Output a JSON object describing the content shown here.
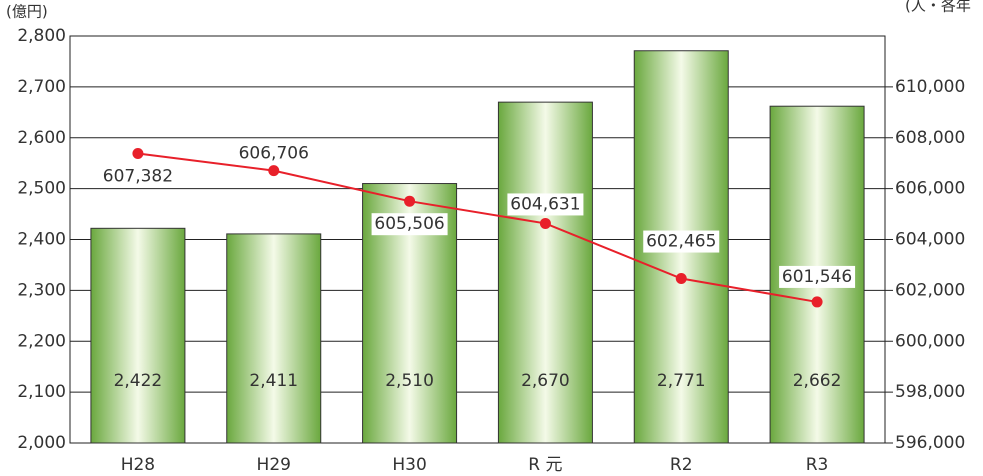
{
  "chart_data": {
    "type": "bar",
    "y_label": "(億円)",
    "y2_label": "(人・各年",
    "categories": [
      "H28",
      "H29",
      "H30",
      "R 元",
      "R2",
      "R3"
    ],
    "series": [
      {
        "name": "bar",
        "type": "bar",
        "color": "#5fa83a",
        "values": [
          2422,
          2411,
          2510,
          2670,
          2771,
          2662
        ],
        "value_labels": [
          "2,422",
          "2,411",
          "2,510",
          "2,670",
          "2,771",
          "2,662"
        ]
      },
      {
        "name": "line",
        "type": "line",
        "axis": "y2",
        "color": "#e8202a",
        "values": [
          607382,
          606706,
          605506,
          604631,
          602465,
          601546
        ],
        "value_labels": [
          "607,382",
          "606,706",
          "605,506",
          "604,631",
          "602,465",
          "601,546"
        ]
      }
    ],
    "ylim": [
      2000,
      2800
    ],
    "yticks": [
      {
        "value": 2000,
        "label": "2,000"
      },
      {
        "value": 2100,
        "label": "2,100"
      },
      {
        "value": 2200,
        "label": "2,200"
      },
      {
        "value": 2300,
        "label": "2,300"
      },
      {
        "value": 2400,
        "label": "2,400"
      },
      {
        "value": 2500,
        "label": "2,500"
      },
      {
        "value": 2600,
        "label": "2,600"
      },
      {
        "value": 2700,
        "label": "2,700"
      },
      {
        "value": 2800,
        "label": "2,800"
      }
    ],
    "y2lim": [
      596000,
      612000
    ],
    "y2ticks": [
      {
        "value": 596000,
        "label": "596,000"
      },
      {
        "value": 598000,
        "label": "598,000"
      },
      {
        "value": 600000,
        "label": "600,000"
      },
      {
        "value": 602000,
        "label": "602,000"
      },
      {
        "value": 604000,
        "label": "604,000"
      },
      {
        "value": 606000,
        "label": "606,000"
      },
      {
        "value": 608000,
        "label": "608,000"
      },
      {
        "value": 610000,
        "label": "610,000"
      }
    ],
    "grid": true
  }
}
